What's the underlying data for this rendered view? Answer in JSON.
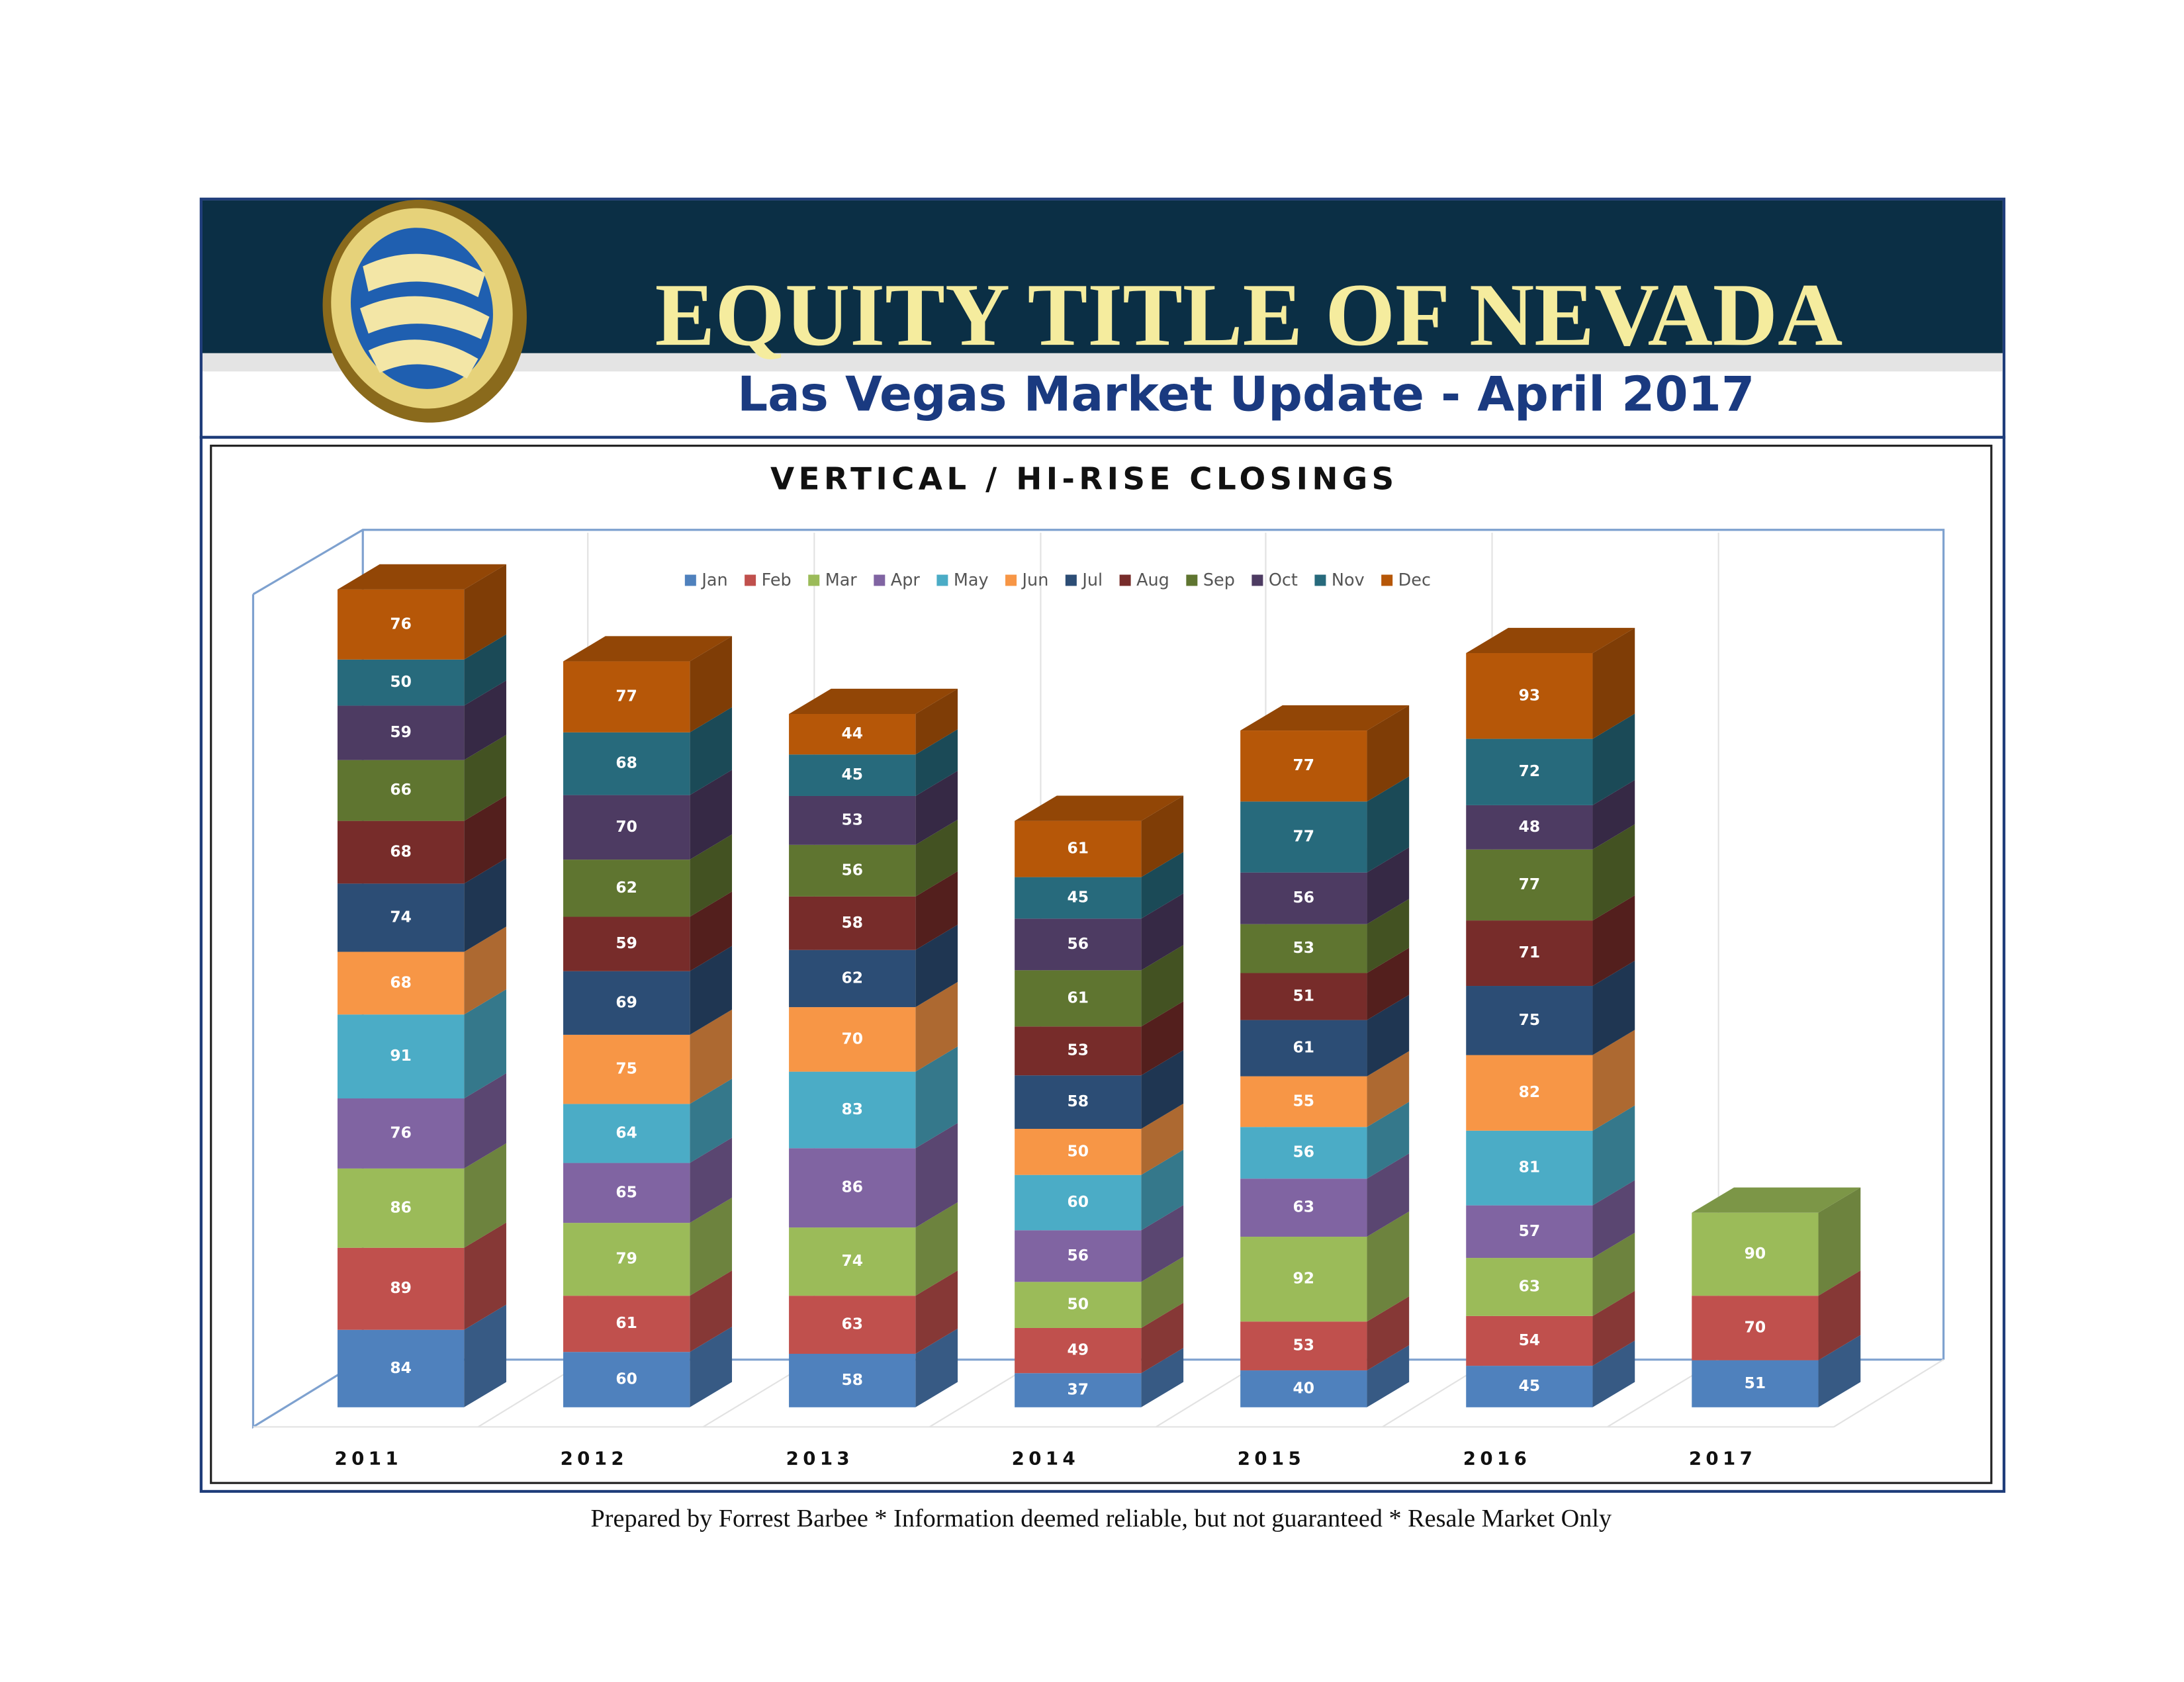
{
  "header": {
    "title": "EQUITY TITLE OF NEVADA",
    "subtitle": "Las Vegas Market Update - April 2017"
  },
  "chart_data": {
    "type": "bar3d-stacked",
    "title": "VERTICAL / HI-RISE CLOSINGS",
    "categories": [
      "2011",
      "2012",
      "2013",
      "2014",
      "2015",
      "2016",
      "2017"
    ],
    "ylim": [
      0,
      900
    ],
    "series": [
      {
        "name": "Jan",
        "color": "#4f81bd",
        "values": [
          84,
          60,
          58,
          37,
          40,
          45,
          51
        ]
      },
      {
        "name": "Feb",
        "color": "#c0504d",
        "values": [
          89,
          61,
          63,
          49,
          53,
          54,
          70
        ]
      },
      {
        "name": "Mar",
        "color": "#9bbb59",
        "values": [
          86,
          79,
          74,
          50,
          92,
          63,
          90
        ]
      },
      {
        "name": "Apr",
        "color": "#8064a2",
        "values": [
          76,
          65,
          86,
          56,
          63,
          57,
          null
        ]
      },
      {
        "name": "May",
        "color": "#4bacc6",
        "values": [
          91,
          64,
          83,
          60,
          56,
          81,
          null
        ]
      },
      {
        "name": "Jun",
        "color": "#f79646",
        "values": [
          68,
          75,
          70,
          50,
          55,
          82,
          null
        ]
      },
      {
        "name": "Jul",
        "color": "#2c4d75",
        "values": [
          74,
          69,
          62,
          58,
          61,
          75,
          null
        ]
      },
      {
        "name": "Aug",
        "color": "#772c2a",
        "values": [
          68,
          59,
          58,
          53,
          51,
          71,
          null
        ]
      },
      {
        "name": "Sep",
        "color": "#5f7530",
        "values": [
          66,
          62,
          56,
          61,
          53,
          77,
          null
        ]
      },
      {
        "name": "Oct",
        "color": "#4d3b62",
        "values": [
          59,
          70,
          53,
          56,
          56,
          48,
          null
        ]
      },
      {
        "name": "Nov",
        "color": "#276a7c",
        "values": [
          50,
          68,
          45,
          45,
          77,
          72,
          null
        ]
      },
      {
        "name": "Dec",
        "color": "#b65708",
        "values": [
          76,
          77,
          44,
          61,
          77,
          93,
          null
        ]
      }
    ]
  },
  "footer": "Prepared by Forrest Barbee * Information deemed reliable, but not guaranteed * Resale Market Only"
}
